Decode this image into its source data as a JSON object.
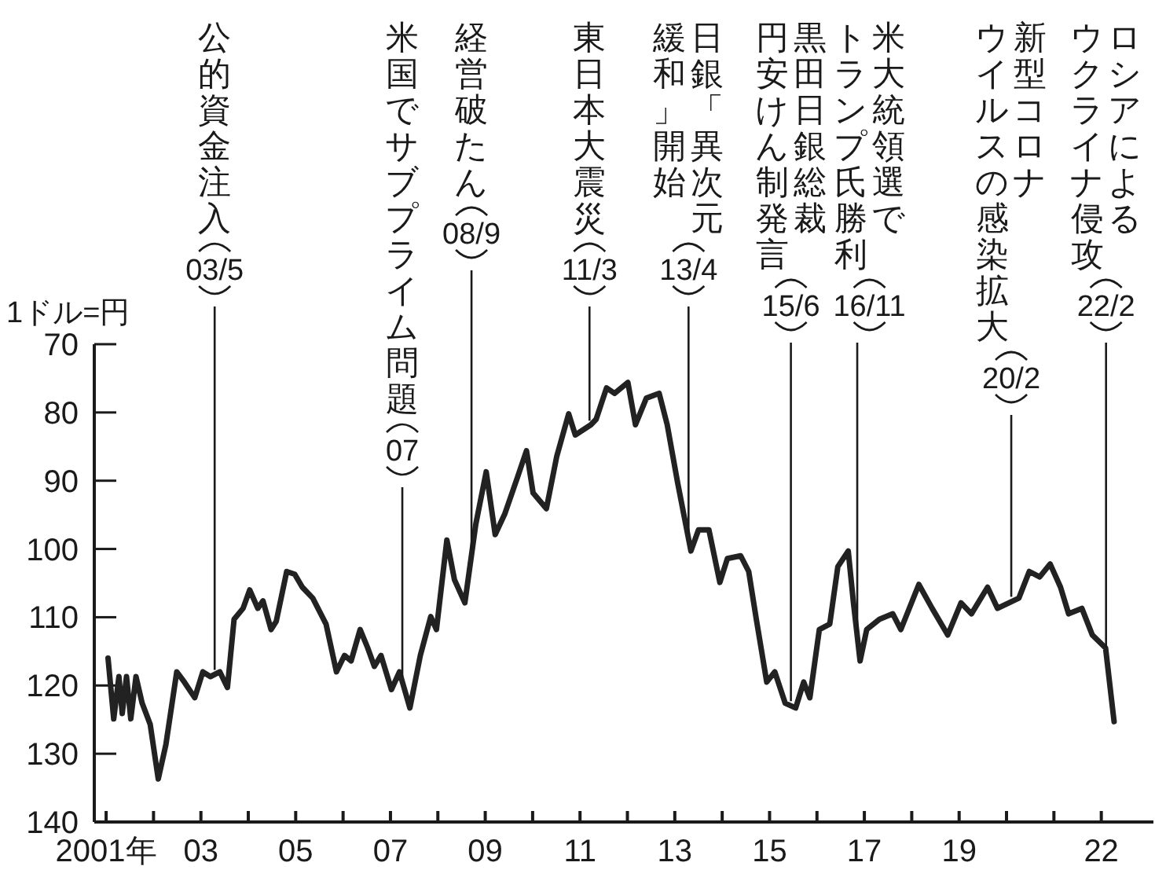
{
  "chart_data": {
    "type": "line",
    "ylabel": "1ドル=円",
    "x": [
      2001.04,
      2001.16,
      2001.27,
      2001.34,
      2001.43,
      2001.52,
      2001.63,
      2001.76,
      2001.93,
      2002.1,
      2002.26,
      2002.49,
      2002.65,
      2002.87,
      2003.04,
      2003.2,
      2003.4,
      2003.56,
      2003.7,
      2003.89,
      2004.03,
      2004.2,
      2004.31,
      2004.48,
      2004.59,
      2004.81,
      2004.98,
      2005.14,
      2005.36,
      2005.64,
      2005.86,
      2006.03,
      2006.17,
      2006.36,
      2006.52,
      2006.66,
      2006.8,
      2007.02,
      2007.19,
      2007.41,
      2007.63,
      2007.85,
      2007.97,
      2008.19,
      2008.35,
      2008.57,
      2008.8,
      2009.02,
      2009.21,
      2009.41,
      2009.68,
      2009.87,
      2010.01,
      2010.29,
      2010.51,
      2010.76,
      2010.9,
      2011.23,
      2011.34,
      2011.56,
      2011.73,
      2012.01,
      2012.17,
      2012.4,
      2012.67,
      2012.84,
      2013.06,
      2013.34,
      2013.5,
      2013.72,
      2013.95,
      2014.11,
      2014.39,
      2014.56,
      2014.72,
      2014.94,
      2015.11,
      2015.33,
      2015.55,
      2015.72,
      2015.85,
      2016.05,
      2016.27,
      2016.44,
      2016.66,
      2016.77,
      2016.91,
      2017.05,
      2017.32,
      2017.6,
      2017.77,
      2018.15,
      2018.43,
      2018.76,
      2019.04,
      2019.26,
      2019.6,
      2019.81,
      2020.26,
      2020.48,
      2020.7,
      2020.92,
      2021.14,
      2021.31,
      2021.59,
      2021.81,
      2022.09,
      2022.27
    ],
    "series": [
      {
        "color": "#222222",
        "values": [
          116.0,
          124.9,
          118.7,
          124.1,
          118.7,
          124.9,
          118.7,
          122.6,
          125.7,
          133.7,
          128.7,
          118.0,
          119.5,
          121.8,
          118.0,
          118.7,
          118.0,
          120.3,
          110.3,
          108.7,
          106.0,
          108.7,
          107.6,
          111.8,
          110.6,
          103.3,
          103.7,
          105.6,
          107.2,
          111.0,
          118.0,
          115.6,
          116.4,
          111.8,
          114.5,
          117.2,
          115.6,
          120.6,
          118.0,
          123.3,
          115.6,
          109.9,
          111.8,
          98.7,
          104.5,
          107.9,
          96.4,
          88.7,
          97.9,
          94.9,
          89.5,
          85.6,
          91.8,
          94.1,
          86.4,
          80.2,
          83.3,
          81.8,
          81.0,
          76.4,
          77.2,
          75.6,
          81.8,
          77.9,
          77.2,
          81.8,
          90.3,
          100.3,
          97.2,
          97.2,
          104.9,
          101.4,
          101.0,
          103.3,
          110.3,
          119.5,
          118.0,
          122.6,
          123.3,
          119.5,
          121.8,
          111.8,
          111.0,
          102.6,
          100.3,
          107.9,
          116.4,
          111.8,
          110.3,
          109.5,
          111.8,
          105.2,
          108.7,
          112.6,
          107.9,
          109.5,
          105.6,
          108.7,
          107.2,
          103.3,
          104.1,
          102.2,
          105.6,
          109.5,
          108.7,
          112.6,
          114.5,
          125.3
        ]
      }
    ],
    "xlim": [
      2000.75,
      2023.1
    ],
    "ylim": [
      140,
      70
    ],
    "yticks": [
      70,
      80,
      90,
      100,
      110,
      120,
      130,
      140
    ],
    "xticks": [
      {
        "value": 2001,
        "label": "2001年"
      },
      {
        "value": 2002,
        "label": null
      },
      {
        "value": 2003,
        "label": "03"
      },
      {
        "value": 2004,
        "label": null
      },
      {
        "value": 2005,
        "label": "05"
      },
      {
        "value": 2006,
        "label": null
      },
      {
        "value": 2007,
        "label": "07"
      },
      {
        "value": 2008,
        "label": null
      },
      {
        "value": 2009,
        "label": "09"
      },
      {
        "value": 2010,
        "label": null
      },
      {
        "value": 2011,
        "label": "11"
      },
      {
        "value": 2012,
        "label": null
      },
      {
        "value": 2013,
        "label": "13"
      },
      {
        "value": 2014,
        "label": null
      },
      {
        "value": 2015,
        "label": "15"
      },
      {
        "value": 2016,
        "label": null
      },
      {
        "value": 2017,
        "label": "17"
      },
      {
        "value": 2018,
        "label": null
      },
      {
        "value": 2019,
        "label": "19"
      },
      {
        "value": 2020,
        "label": null
      },
      {
        "value": 2021,
        "label": null
      },
      {
        "value": 2022,
        "label": "22"
      }
    ],
    "annotations": [
      "公的資金注入",
      {
        "text": "03/5",
        "x": 2003.29,
        "y": 118.4
      },
      "米国でサブプライム問題",
      {
        "text": "07",
        "x": 2007.25,
        "y": 119.4
      },
      "経営破たん",
      {
        "text": "08/9",
        "x": 2008.71,
        "y": 100.9
      },
      "東日本大震災",
      {
        "text": "11/3",
        "x": 2011.2,
        "y": 81.9
      },
      "日銀「異次元",
      "緩和」開始",
      {
        "text": "13/4",
        "x": 2013.29,
        "y": 98.5
      },
      "黒田日銀総裁",
      "円安けん制発言",
      {
        "text": "15/6",
        "x": 2015.45,
        "y": 123.0
      },
      "米大統領選で",
      "トランプ氏勝利",
      {
        "text": "16/11",
        "x": 2016.85,
        "y": 112.8
      },
      "新型コロナ",
      "ウイルスの感染拡大",
      {
        "text": "20/2",
        "x": 2020.1,
        "y": 107.7
      },
      "ロシアによる",
      "ウクライナ侵攻",
      {
        "text": "22/2",
        "x": 2022.1,
        "y": 115.1
      }
    ]
  }
}
